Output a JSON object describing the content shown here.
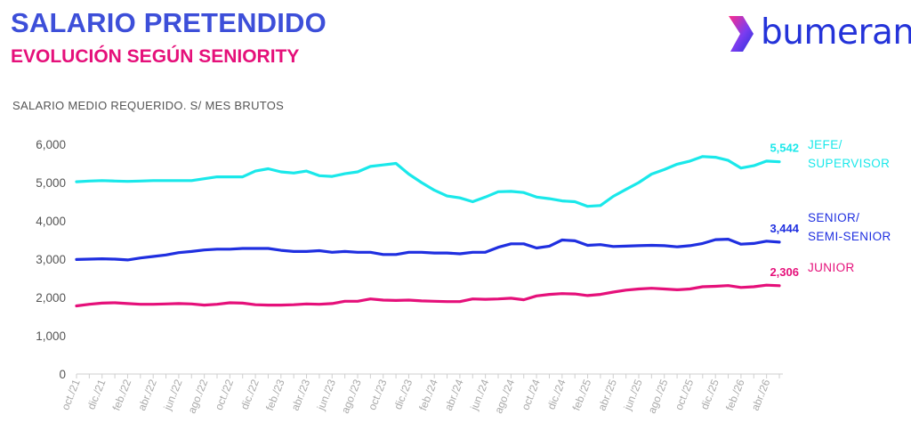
{
  "header": {
    "title": "SALARIO PRETENDIDO",
    "subtitle": "EVOLUCIÓN SEGÚN SENIORITY",
    "axis_caption": "SALARIO MEDIO REQUERIDO. S/ MES BRUTOS",
    "brand": "bumeran"
  },
  "colors": {
    "title": "#3d4fd9",
    "subtitle": "#e5107a",
    "brand": "#2433d9",
    "jefe": "#1ae8ea",
    "senior": "#1f2fe0",
    "junior": "#e5107a",
    "axis_text": "#555555"
  },
  "chart_data": {
    "type": "line",
    "title": "SALARIO PRETENDIDO",
    "subtitle": "EVOLUCIÓN SEGÚN SENIORITY",
    "ylabel": "SALARIO MEDIO REQUERIDO. S/ MES BRUTOS",
    "ylim": [
      0,
      6000
    ],
    "yticks": [
      "0",
      "1,000",
      "2,000",
      "3,000",
      "4,000",
      "5,000",
      "6,000"
    ],
    "grid": false,
    "legend": "right",
    "x_tick_labels": [
      "oct./21",
      "dic./21",
      "feb./22",
      "abr./22",
      "jun./22",
      "ago./22",
      "oct./22",
      "dic./22",
      "feb./23",
      "abr./23",
      "jun./23",
      "ago./23",
      "oct./23",
      "dic./23",
      "feb./24",
      "abr./24",
      "jun./24",
      "ago./24",
      "oct./24",
      "dic./24",
      "feb./25",
      "abr./25",
      "jun./25",
      "ago./25",
      "oct./25",
      "dic./25",
      "feb./26",
      "abr./26"
    ],
    "x": [
      "oct./21",
      "nov./21",
      "dic./21",
      "ene./22",
      "feb./22",
      "mar./22",
      "abr./22",
      "may./22",
      "jun./22",
      "jul./22",
      "ago./22",
      "sep./22",
      "oct./22",
      "nov./22",
      "dic./22",
      "ene./23",
      "feb./23",
      "mar./23",
      "abr./23",
      "may./23",
      "jun./23",
      "jul./23",
      "ago./23",
      "sep./23",
      "oct./23",
      "nov./23",
      "dic./23",
      "ene./24",
      "feb./24",
      "mar./24",
      "abr./24",
      "may./24",
      "jun./24",
      "jul./24",
      "ago./24",
      "sep./24",
      "oct./24",
      "nov./24",
      "dic./24",
      "ene./25",
      "feb./25",
      "mar./25",
      "abr./25",
      "may./25",
      "jun./25",
      "jul./25",
      "ago./25",
      "sep./25",
      "oct./25",
      "nov./25",
      "dic./25",
      "ene./26",
      "feb./26",
      "mar./26",
      "abr./26",
      "may./26"
    ],
    "series": [
      {
        "name": "JEFE/\nSUPERVISOR",
        "color": "#1ae8ea",
        "end_label": "5,542",
        "values": [
          5020,
          5040,
          5050,
          5040,
          5030,
          5040,
          5050,
          5050,
          5050,
          5050,
          5100,
          5150,
          5150,
          5150,
          5300,
          5360,
          5280,
          5250,
          5300,
          5180,
          5160,
          5230,
          5280,
          5420,
          5460,
          5500,
          5220,
          5000,
          4800,
          4650,
          4600,
          4500,
          4620,
          4760,
          4770,
          4740,
          4620,
          4580,
          4520,
          4500,
          4380,
          4400,
          4640,
          4820,
          5000,
          5220,
          5340,
          5480,
          5560,
          5680,
          5660,
          5580,
          5380,
          5440,
          5560,
          5542
        ]
      },
      {
        "name": "SENIOR/\nSEMI-SENIOR",
        "color": "#1f2fe0",
        "end_label": "3,444",
        "values": [
          2990,
          3000,
          3010,
          3000,
          2980,
          3030,
          3070,
          3110,
          3170,
          3200,
          3240,
          3260,
          3260,
          3280,
          3280,
          3280,
          3230,
          3200,
          3200,
          3220,
          3180,
          3200,
          3180,
          3180,
          3120,
          3120,
          3180,
          3180,
          3160,
          3160,
          3140,
          3180,
          3180,
          3310,
          3400,
          3400,
          3290,
          3340,
          3500,
          3480,
          3360,
          3380,
          3330,
          3340,
          3350,
          3360,
          3350,
          3320,
          3350,
          3410,
          3510,
          3520,
          3390,
          3410,
          3470,
          3444
        ]
      },
      {
        "name": "JUNIOR",
        "color": "#e5107a",
        "end_label": "2,306",
        "values": [
          1780,
          1820,
          1850,
          1860,
          1840,
          1820,
          1820,
          1830,
          1840,
          1830,
          1800,
          1820,
          1860,
          1850,
          1810,
          1800,
          1800,
          1810,
          1830,
          1820,
          1840,
          1900,
          1900,
          1960,
          1930,
          1920,
          1930,
          1910,
          1900,
          1890,
          1890,
          1960,
          1950,
          1960,
          1980,
          1940,
          2040,
          2080,
          2100,
          2090,
          2050,
          2080,
          2140,
          2190,
          2220,
          2240,
          2220,
          2200,
          2220,
          2280,
          2290,
          2310,
          2260,
          2280,
          2320,
          2306
        ]
      }
    ]
  }
}
